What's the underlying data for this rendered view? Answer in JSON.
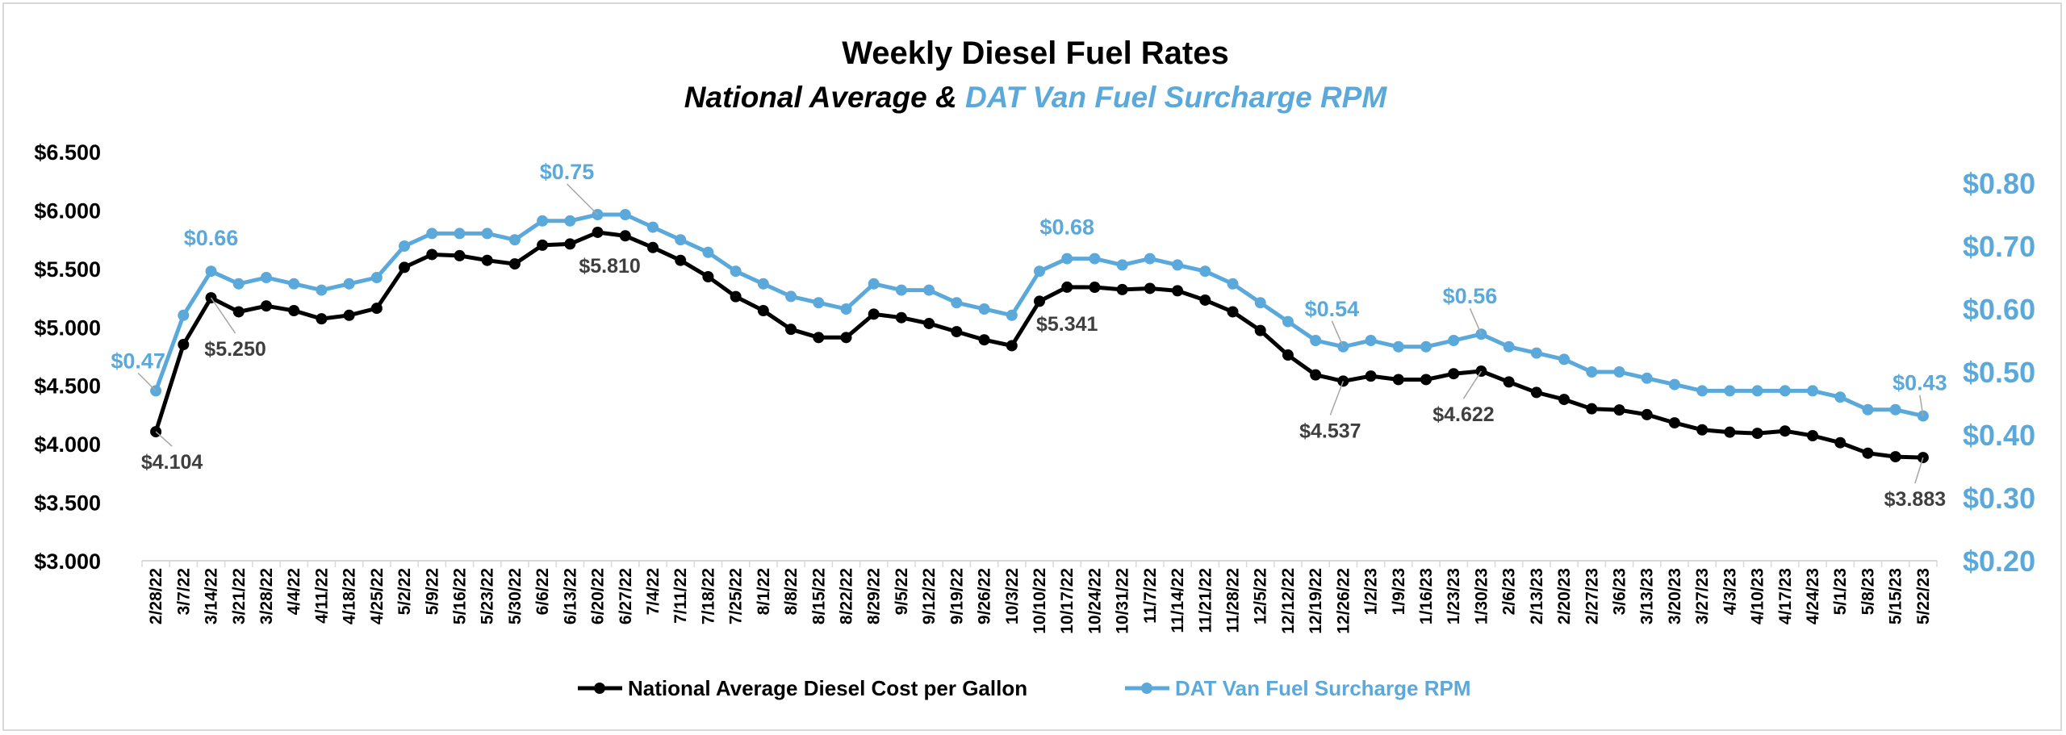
{
  "chart_data": {
    "type": "line",
    "title": "Weekly Diesel Fuel Rates",
    "subtitle_part1": "National Average & ",
    "subtitle_part2": "DAT Van Fuel Surcharge RPM",
    "grid": false,
    "legend_position": "bottom",
    "colors": {
      "primary": "#000000",
      "secondary": "#5aa9da",
      "annotation": "#3f3f3f"
    },
    "y_left": {
      "ylim": [
        3.0,
        6.5
      ],
      "ticks": [
        "$3.000",
        "$3.500",
        "$4.000",
        "$4.500",
        "$5.000",
        "$5.500",
        "$6.000",
        "$6.500"
      ]
    },
    "y_right": {
      "ylim": [
        0.2,
        0.85
      ],
      "ticks": [
        "$0.20",
        "$0.30",
        "$0.40",
        "$0.50",
        "$0.60",
        "$0.70",
        "$0.80"
      ]
    },
    "categories": [
      "2/28/22",
      "3/7/22",
      "3/14/22",
      "3/21/22",
      "3/28/22",
      "4/4/22",
      "4/11/22",
      "4/18/22",
      "4/25/22",
      "5/2/22",
      "5/9/22",
      "5/16/22",
      "5/23/22",
      "5/30/22",
      "6/6/22",
      "6/13/22",
      "6/20/22",
      "6/27/22",
      "7/4/22",
      "7/11/22",
      "7/18/22",
      "7/25/22",
      "8/1/22",
      "8/8/22",
      "8/15/22",
      "8/22/22",
      "8/29/22",
      "9/5/22",
      "9/12/22",
      "9/19/22",
      "9/26/22",
      "10/3/22",
      "10/10/22",
      "10/17/22",
      "10/24/22",
      "10/31/22",
      "11/7/22",
      "11/14/22",
      "11/21/22",
      "11/28/22",
      "12/5/22",
      "12/12/22",
      "12/19/22",
      "12/26/22",
      "1/2/23",
      "1/9/23",
      "1/16/23",
      "1/23/23",
      "1/30/23",
      "2/6/23",
      "2/13/23",
      "2/20/23",
      "2/27/23",
      "3/6/23",
      "3/13/23",
      "3/20/23",
      "3/27/23",
      "4/3/23",
      "4/10/23",
      "4/17/23",
      "4/24/23",
      "5/1/23",
      "5/8/23",
      "5/15/23",
      "5/22/23"
    ],
    "series": [
      {
        "name": "National Average Diesel Cost per Gallon",
        "axis": "left",
        "values": [
          4.104,
          4.85,
          5.25,
          5.13,
          5.18,
          5.14,
          5.07,
          5.1,
          5.16,
          5.51,
          5.62,
          5.61,
          5.57,
          5.54,
          5.7,
          5.71,
          5.81,
          5.78,
          5.68,
          5.57,
          5.43,
          5.26,
          5.14,
          4.98,
          4.91,
          4.91,
          5.11,
          5.08,
          5.03,
          4.96,
          4.89,
          4.84,
          5.22,
          5.341,
          5.34,
          5.32,
          5.33,
          5.31,
          5.23,
          5.13,
          4.97,
          4.76,
          4.59,
          4.537,
          4.58,
          4.55,
          4.55,
          4.6,
          4.622,
          4.53,
          4.44,
          4.38,
          4.3,
          4.29,
          4.25,
          4.18,
          4.12,
          4.1,
          4.09,
          4.11,
          4.07,
          4.01,
          3.92,
          3.89,
          3.883
        ]
      },
      {
        "name": "DAT Van Fuel Surcharge RPM",
        "axis": "right",
        "values": [
          0.47,
          0.59,
          0.66,
          0.64,
          0.65,
          0.64,
          0.63,
          0.64,
          0.65,
          0.7,
          0.72,
          0.72,
          0.72,
          0.71,
          0.74,
          0.74,
          0.75,
          0.75,
          0.73,
          0.71,
          0.69,
          0.66,
          0.64,
          0.62,
          0.61,
          0.6,
          0.64,
          0.63,
          0.63,
          0.61,
          0.6,
          0.59,
          0.66,
          0.68,
          0.68,
          0.67,
          0.68,
          0.67,
          0.66,
          0.64,
          0.61,
          0.58,
          0.55,
          0.54,
          0.55,
          0.54,
          0.54,
          0.55,
          0.56,
          0.54,
          0.53,
          0.52,
          0.5,
          0.5,
          0.49,
          0.48,
          0.47,
          0.47,
          0.47,
          0.47,
          0.47,
          0.46,
          0.44,
          0.44,
          0.43
        ]
      }
    ],
    "annotations": [
      {
        "series": 1,
        "index": 0,
        "label": "$0.47"
      },
      {
        "series": 1,
        "index": 2,
        "label": "$0.66"
      },
      {
        "series": 1,
        "index": 16,
        "label": "$0.75"
      },
      {
        "series": 1,
        "index": 33,
        "label": "$0.68"
      },
      {
        "series": 1,
        "index": 43,
        "label": "$0.54"
      },
      {
        "series": 1,
        "index": 48,
        "label": "$0.56"
      },
      {
        "series": 1,
        "index": 64,
        "label": "$0.43"
      },
      {
        "series": 0,
        "index": 0,
        "label": "$4.104"
      },
      {
        "series": 0,
        "index": 2,
        "label": "$5.250"
      },
      {
        "series": 0,
        "index": 16,
        "label": "$5.810"
      },
      {
        "series": 0,
        "index": 33,
        "label": "$5.341"
      },
      {
        "series": 0,
        "index": 43,
        "label": "$4.537"
      },
      {
        "series": 0,
        "index": 48,
        "label": "$4.622"
      },
      {
        "series": 0,
        "index": 64,
        "label": "$3.883"
      }
    ]
  }
}
